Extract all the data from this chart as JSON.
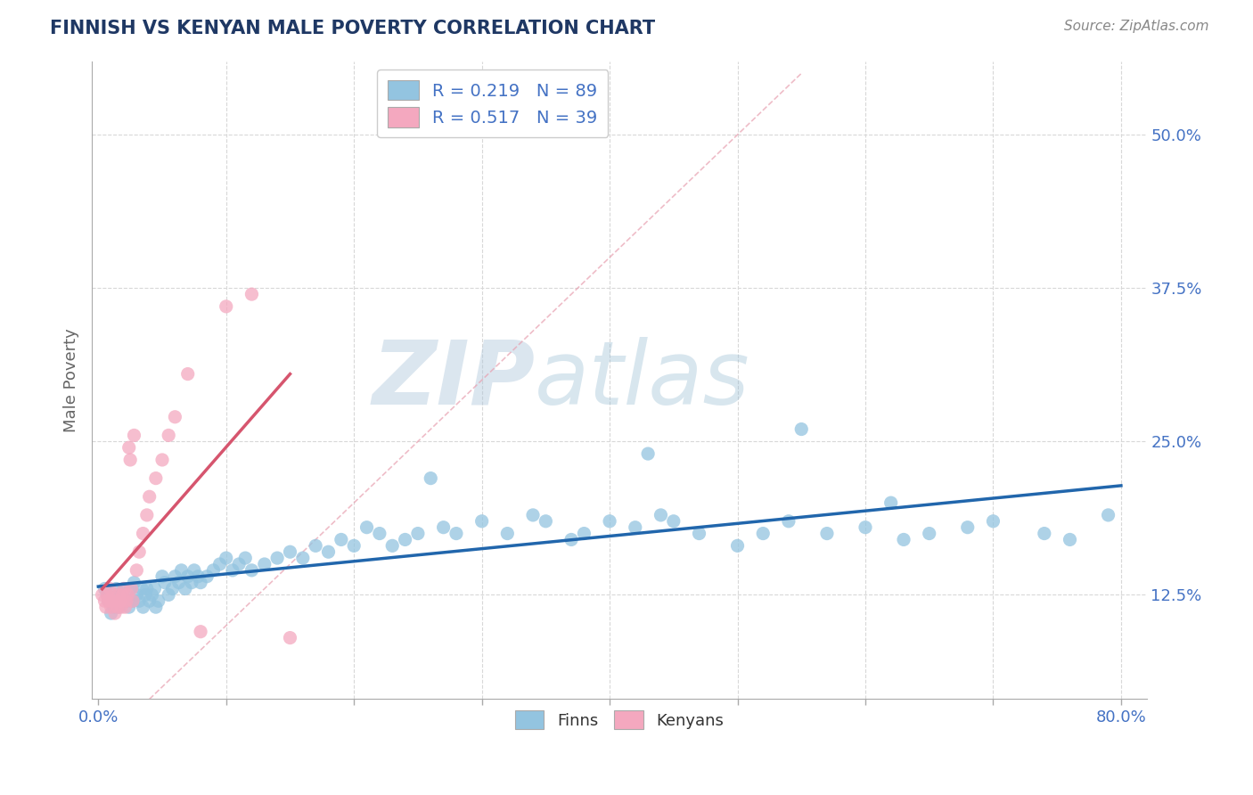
{
  "title": "FINNISH VS KENYAN MALE POVERTY CORRELATION CHART",
  "source": "Source: ZipAtlas.com",
  "ylabel": "Male Poverty",
  "xlim": [
    -0.005,
    0.82
  ],
  "ylim": [
    0.04,
    0.56
  ],
  "yticks": [
    0.125,
    0.25,
    0.375,
    0.5
  ],
  "ytick_labels": [
    "12.5%",
    "25.0%",
    "37.5%",
    "50.0%"
  ],
  "xticks": [
    0.0,
    0.1,
    0.2,
    0.3,
    0.4,
    0.5,
    0.6,
    0.7,
    0.8
  ],
  "xtick_labels": [
    "0.0%",
    "",
    "",
    "",
    "",
    "",
    "",
    "",
    "80.0%"
  ],
  "finn_color": "#93c4e0",
  "kenyan_color": "#f4a8bf",
  "finn_line_color": "#2166ac",
  "kenyan_line_color": "#d6556e",
  "finn_R": 0.219,
  "finn_N": 89,
  "kenyan_R": 0.517,
  "kenyan_N": 39,
  "title_color": "#1f3864",
  "axis_label_color": "#666666",
  "tick_color": "#4472c4",
  "source_color": "#888888",
  "background_color": "#ffffff",
  "grid_color": "#d8d8d8",
  "watermark_color": "#c8d8e8",
  "finn_x": [
    0.005,
    0.007,
    0.008,
    0.01,
    0.012,
    0.014,
    0.015,
    0.016,
    0.018,
    0.02,
    0.022,
    0.024,
    0.025,
    0.027,
    0.028,
    0.03,
    0.032,
    0.034,
    0.035,
    0.037,
    0.038,
    0.04,
    0.042,
    0.044,
    0.045,
    0.047,
    0.05,
    0.052,
    0.055,
    0.058,
    0.06,
    0.063,
    0.065,
    0.068,
    0.07,
    0.073,
    0.075,
    0.078,
    0.08,
    0.085,
    0.09,
    0.095,
    0.1,
    0.105,
    0.11,
    0.115,
    0.12,
    0.13,
    0.14,
    0.15,
    0.16,
    0.17,
    0.18,
    0.19,
    0.2,
    0.21,
    0.22,
    0.23,
    0.24,
    0.25,
    0.27,
    0.28,
    0.3,
    0.32,
    0.34,
    0.35,
    0.37,
    0.38,
    0.4,
    0.42,
    0.44,
    0.45,
    0.47,
    0.5,
    0.52,
    0.54,
    0.57,
    0.6,
    0.63,
    0.65,
    0.68,
    0.7,
    0.74,
    0.76,
    0.79,
    0.55,
    0.43,
    0.62,
    0.26
  ],
  "finn_y": [
    0.13,
    0.125,
    0.12,
    0.11,
    0.115,
    0.13,
    0.12,
    0.115,
    0.125,
    0.13,
    0.12,
    0.115,
    0.13,
    0.12,
    0.135,
    0.125,
    0.12,
    0.13,
    0.115,
    0.125,
    0.13,
    0.12,
    0.125,
    0.13,
    0.115,
    0.12,
    0.14,
    0.135,
    0.125,
    0.13,
    0.14,
    0.135,
    0.145,
    0.13,
    0.14,
    0.135,
    0.145,
    0.14,
    0.135,
    0.14,
    0.145,
    0.15,
    0.155,
    0.145,
    0.15,
    0.155,
    0.145,
    0.15,
    0.155,
    0.16,
    0.155,
    0.165,
    0.16,
    0.17,
    0.165,
    0.18,
    0.175,
    0.165,
    0.17,
    0.175,
    0.18,
    0.175,
    0.185,
    0.175,
    0.19,
    0.185,
    0.17,
    0.175,
    0.185,
    0.18,
    0.19,
    0.185,
    0.175,
    0.165,
    0.175,
    0.185,
    0.175,
    0.18,
    0.17,
    0.175,
    0.18,
    0.185,
    0.175,
    0.17,
    0.19,
    0.26,
    0.24,
    0.2,
    0.22
  ],
  "kenyan_x": [
    0.003,
    0.005,
    0.006,
    0.007,
    0.008,
    0.009,
    0.01,
    0.01,
    0.012,
    0.013,
    0.014,
    0.015,
    0.016,
    0.017,
    0.018,
    0.019,
    0.02,
    0.021,
    0.022,
    0.023,
    0.024,
    0.025,
    0.026,
    0.027,
    0.028,
    0.03,
    0.032,
    0.035,
    0.038,
    0.04,
    0.045,
    0.05,
    0.055,
    0.06,
    0.07,
    0.08,
    0.1,
    0.12,
    0.15
  ],
  "kenyan_y": [
    0.125,
    0.12,
    0.115,
    0.125,
    0.12,
    0.13,
    0.115,
    0.12,
    0.125,
    0.11,
    0.12,
    0.115,
    0.125,
    0.12,
    0.115,
    0.125,
    0.13,
    0.115,
    0.12,
    0.125,
    0.245,
    0.235,
    0.13,
    0.12,
    0.255,
    0.145,
    0.16,
    0.175,
    0.19,
    0.205,
    0.22,
    0.235,
    0.255,
    0.27,
    0.305,
    0.095,
    0.36,
    0.37,
    0.09
  ]
}
